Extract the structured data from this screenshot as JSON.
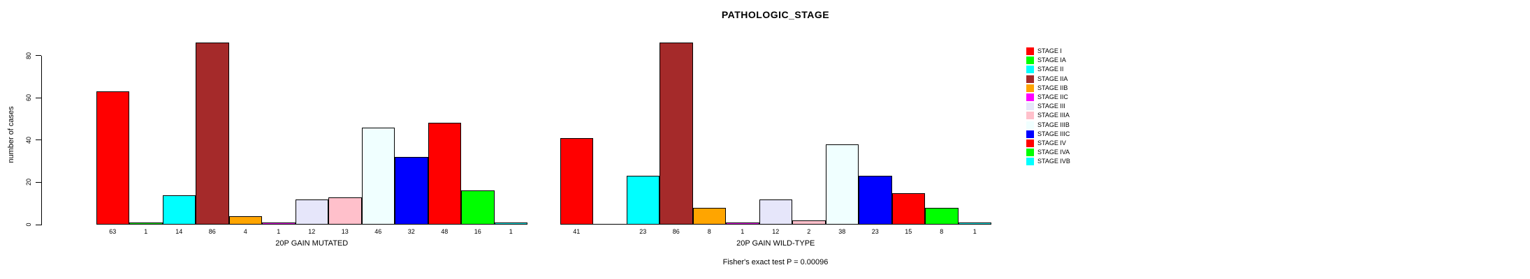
{
  "figure": {
    "title": "PATHOLOGIC_STAGE",
    "footer": "Fisher's exact test P = 0.00096"
  },
  "chart_data": {
    "type": "bar",
    "title": "PATHOLOGIC_STAGE",
    "xlabel": "",
    "ylabel": "number of cases",
    "ylim": [
      0,
      88
    ],
    "yticks": [
      0,
      20,
      40,
      60,
      80
    ],
    "grid": false,
    "legend_position": "right",
    "categories": [
      "STAGE I",
      "STAGE IA",
      "STAGE II",
      "STAGE IIA",
      "STAGE IIB",
      "STAGE IIC",
      "STAGE III",
      "STAGE IIIA",
      "STAGE IIIB",
      "STAGE IIIC",
      "STAGE IV",
      "STAGE IVA",
      "STAGE IVB"
    ],
    "colors": [
      "#FF0000",
      "#00FF00",
      "#00FFFF",
      "#A52A2A",
      "#FFA500",
      "#FF00FF",
      "#E6E6FA",
      "#FFC0CB",
      "#F0FFFF",
      "#0000FF",
      "#FF0000",
      "#00FF00",
      "#00FFFF"
    ],
    "series": [
      {
        "name": "20P GAIN MUTATED",
        "values": [
          63,
          1,
          14,
          86,
          4,
          1,
          12,
          13,
          46,
          32,
          48,
          16,
          1
        ]
      },
      {
        "name": "20P GAIN WILD-TYPE",
        "values": [
          41,
          0,
          23,
          86,
          8,
          1,
          12,
          2,
          38,
          23,
          15,
          8,
          1
        ]
      }
    ],
    "bar_border_color": "#000000",
    "annotation": "Fisher's exact test P = 0.00096"
  }
}
